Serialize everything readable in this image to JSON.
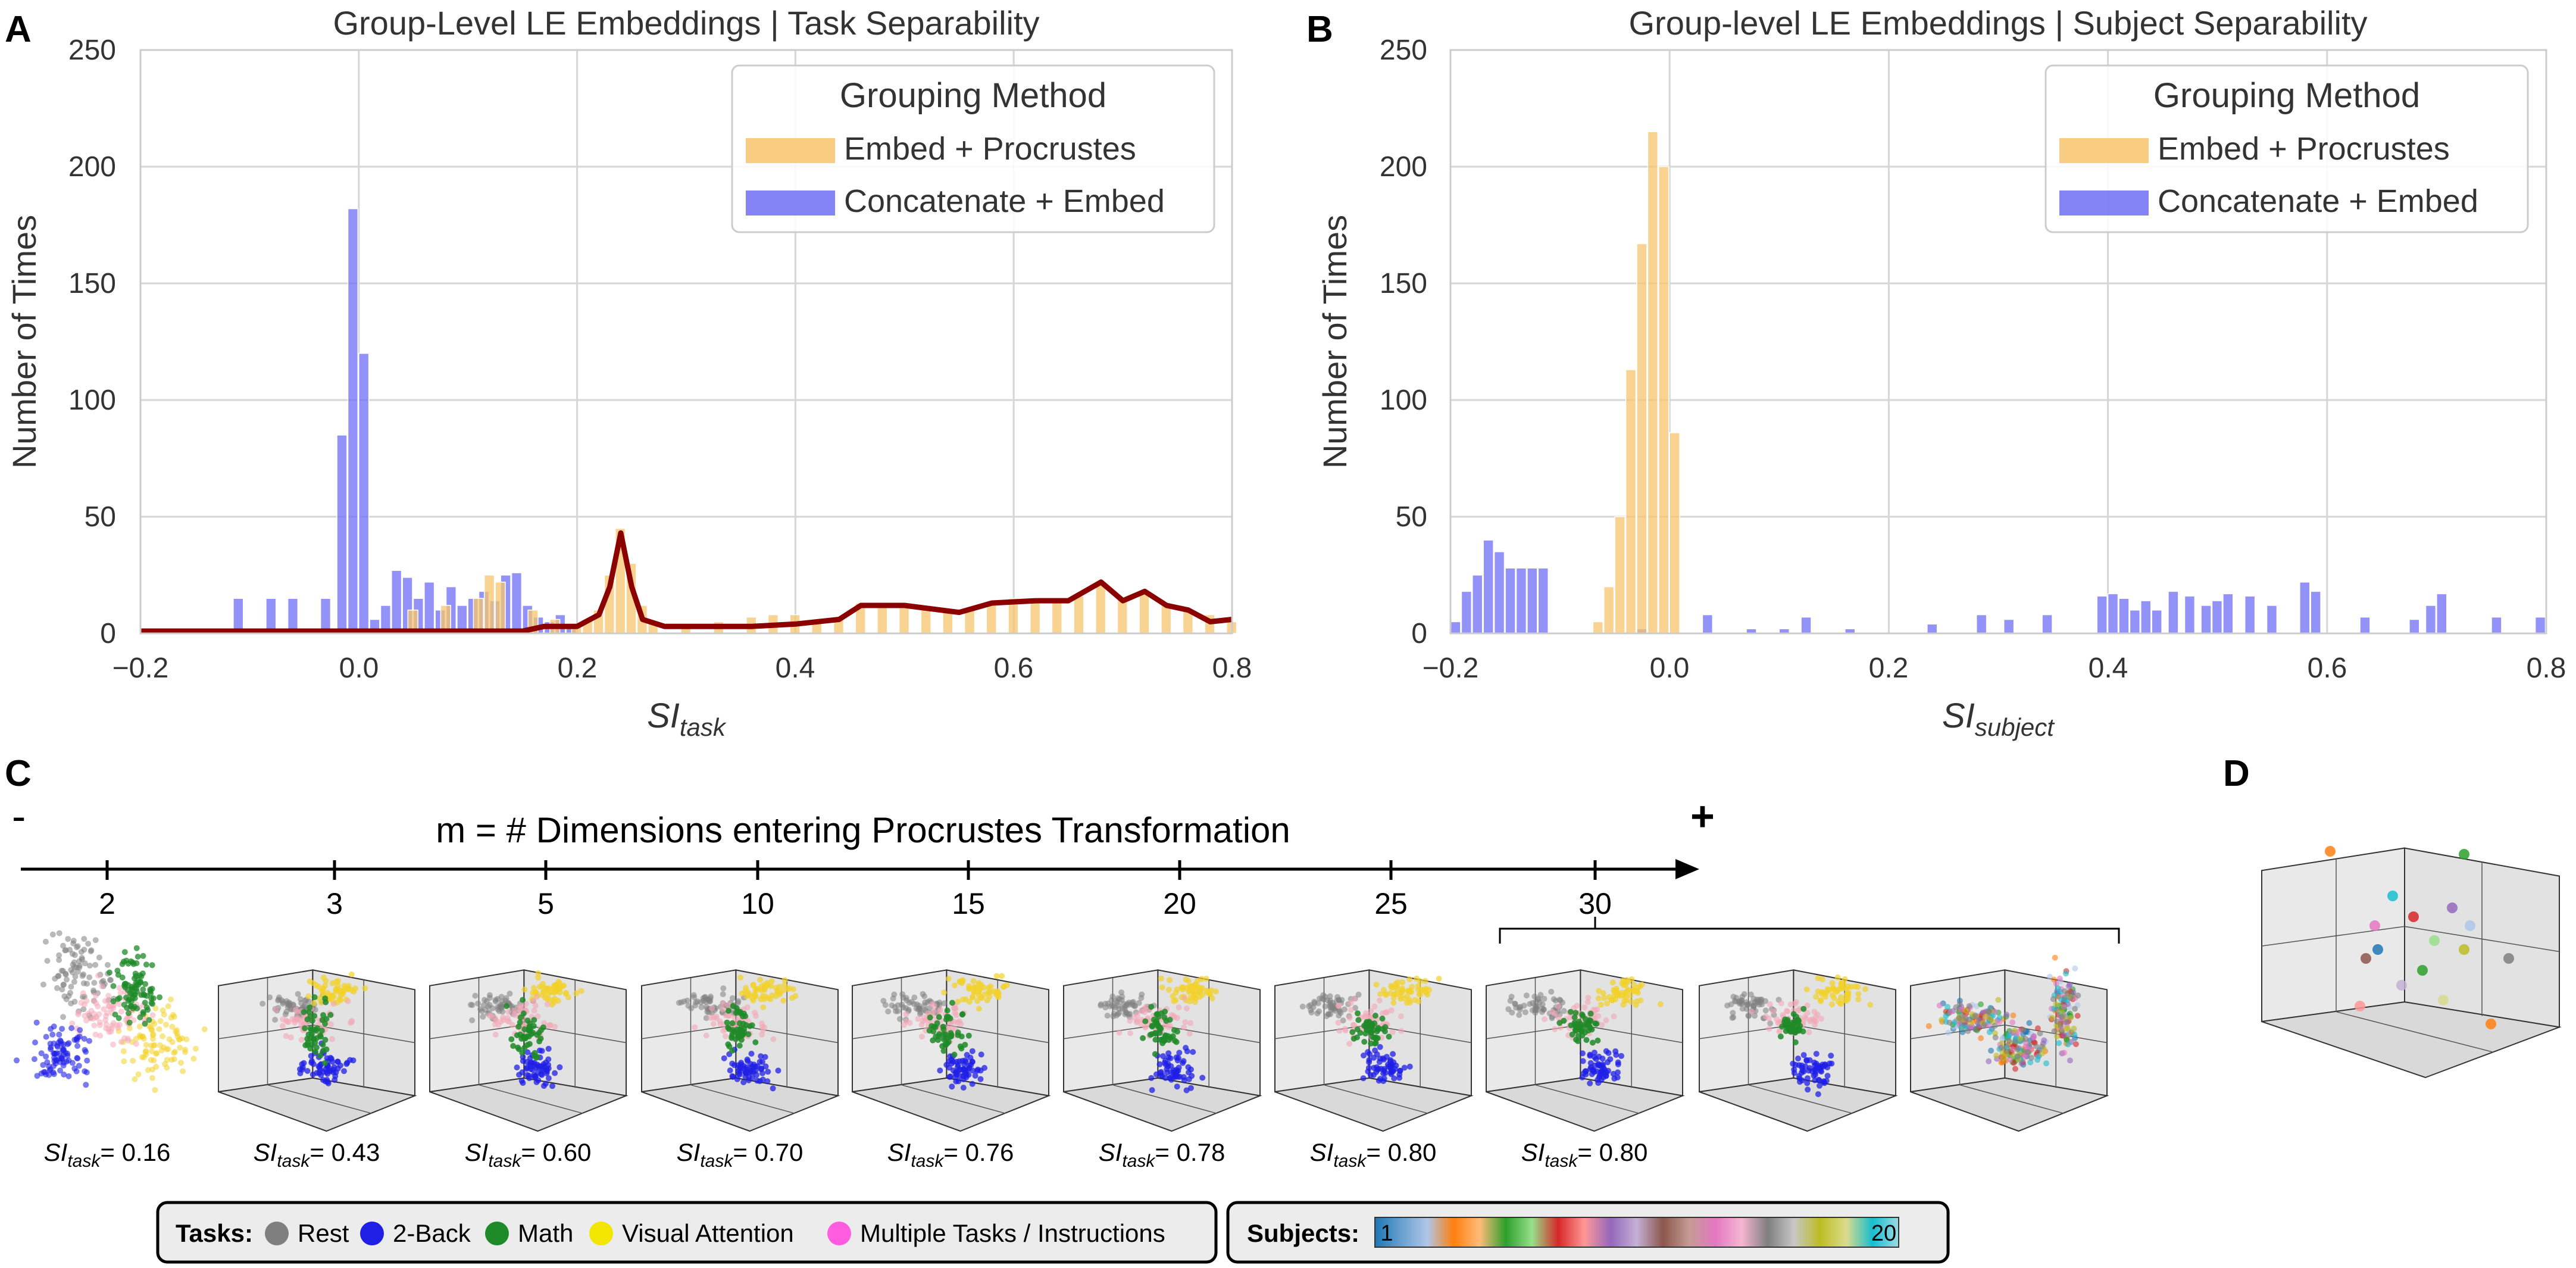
{
  "panel_letters": {
    "a": "A",
    "b": "B",
    "c": "C",
    "d": "D"
  },
  "panel_a": {
    "title": "Group-Level LE Embeddings | Task Separability",
    "ylabel": "Number of Times",
    "xlabel_main": "SI",
    "xlabel_sub": "task",
    "xticks": [
      "−0.2",
      "0.0",
      "0.2",
      "0.4",
      "0.6",
      "0.8"
    ],
    "yticks": [
      "0",
      "50",
      "100",
      "150",
      "200",
      "250"
    ],
    "legend": {
      "title": "Grouping Method",
      "items": [
        "Embed + Procrustes",
        "Concatenate + Embed"
      ]
    }
  },
  "panel_b": {
    "title": "Group-level LE Embeddings | Subject Separability",
    "ylabel": "Number of Times",
    "xlabel_main": "SI",
    "xlabel_sub": "subject",
    "xticks": [
      "−0.2",
      "0.0",
      "0.2",
      "0.4",
      "0.6",
      "0.8"
    ],
    "yticks": [
      "0",
      "50",
      "100",
      "150",
      "200",
      "250"
    ],
    "legend": {
      "title": "Grouping Method",
      "items": [
        "Embed + Procrustes",
        "Concatenate + Embed"
      ]
    }
  },
  "panel_c": {
    "axis_title": "m = # Dimensions entering Procrustes Transformation",
    "minus": "-",
    "plus": "+",
    "m_values": [
      "2",
      "3",
      "5",
      "10",
      "15",
      "20",
      "25",
      "30"
    ],
    "si_label_main": "SI",
    "si_label_sub": "task",
    "si_values": [
      "= 0.16",
      "= 0.43",
      "= 0.60",
      "= 0.70",
      "= 0.76",
      "= 0.78",
      "= 0.80",
      "= 0.80"
    ]
  },
  "legend_tasks": {
    "label": "Tasks:",
    "items": [
      "Rest",
      "2-Back",
      "Math",
      "Visual Attention",
      "Multiple Tasks / Instructions"
    ]
  },
  "legend_subjects": {
    "label": "Subjects:",
    "first": "1",
    "last": "20"
  },
  "colors": {
    "orange": "#f7c46c",
    "blue": "#6e6ef5",
    "darkred": "#8b0000",
    "grid": "#d0d0d0",
    "rest": "#7f7f7f",
    "twoback": "#1f1fe6",
    "math": "#1e8a28",
    "visual": "#f2d229",
    "multiple": "#f4a9b7"
  },
  "chart_data": [
    {
      "type": "bar",
      "id": "A",
      "title": "Group-Level LE Embeddings | Task Separability",
      "xlabel": "SI_task",
      "ylabel": "Number of Times",
      "xlim": [
        -0.2,
        0.8
      ],
      "ylim": [
        0,
        250
      ],
      "bin_width": 0.01,
      "series": [
        {
          "name": "Concatenate + Embed",
          "points": [
            [
              -0.11,
              15
            ],
            [
              -0.08,
              15
            ],
            [
              -0.06,
              15
            ],
            [
              -0.03,
              15
            ],
            [
              -0.015,
              85
            ],
            [
              -0.005,
              182
            ],
            [
              0.005,
              120
            ],
            [
              0.015,
              6
            ],
            [
              0.025,
              12
            ],
            [
              0.035,
              27
            ],
            [
              0.045,
              24
            ],
            [
              0.055,
              15
            ],
            [
              0.065,
              22
            ],
            [
              0.075,
              10
            ],
            [
              0.085,
              20
            ],
            [
              0.095,
              12
            ],
            [
              0.105,
              15
            ],
            [
              0.115,
              18
            ],
            [
              0.125,
              14
            ],
            [
              0.135,
              25
            ],
            [
              0.145,
              26
            ],
            [
              0.155,
              12
            ],
            [
              0.165,
              7
            ],
            [
              0.175,
              5
            ],
            [
              0.185,
              8
            ],
            [
              0.195,
              3
            ]
          ]
        },
        {
          "name": "Embed + Procrustes",
          "points": [
            [
              0.05,
              10
            ],
            [
              0.08,
              12
            ],
            [
              0.11,
              15
            ],
            [
              0.12,
              25
            ],
            [
              0.13,
              22
            ],
            [
              0.16,
              10
            ],
            [
              0.18,
              6
            ],
            [
              0.2,
              4
            ],
            [
              0.21,
              6
            ],
            [
              0.22,
              10
            ],
            [
              0.23,
              25
            ],
            [
              0.24,
              45
            ],
            [
              0.25,
              30
            ],
            [
              0.26,
              12
            ],
            [
              0.27,
              5
            ],
            [
              0.3,
              4
            ],
            [
              0.33,
              5
            ],
            [
              0.36,
              7
            ],
            [
              0.38,
              8
            ],
            [
              0.4,
              8
            ],
            [
              0.42,
              6
            ],
            [
              0.44,
              7
            ],
            [
              0.46,
              13
            ],
            [
              0.48,
              13
            ],
            [
              0.5,
              11
            ],
            [
              0.52,
              12
            ],
            [
              0.54,
              9
            ],
            [
              0.56,
              10
            ],
            [
              0.58,
              13
            ],
            [
              0.6,
              15
            ],
            [
              0.62,
              14
            ],
            [
              0.64,
              14
            ],
            [
              0.66,
              16
            ],
            [
              0.68,
              21
            ],
            [
              0.7,
              15
            ],
            [
              0.72,
              18
            ],
            [
              0.74,
              12
            ],
            [
              0.76,
              10
            ],
            [
              0.78,
              8
            ],
            [
              0.8,
              5
            ]
          ]
        },
        {
          "name": "KDE (Embed + Procrustes)",
          "points": [
            [
              -0.2,
              1
            ],
            [
              0.0,
              1
            ],
            [
              0.05,
              1
            ],
            [
              0.1,
              1
            ],
            [
              0.15,
              1
            ],
            [
              0.17,
              3
            ],
            [
              0.2,
              3
            ],
            [
              0.22,
              8
            ],
            [
              0.23,
              20
            ],
            [
              0.24,
              43
            ],
            [
              0.25,
              20
            ],
            [
              0.26,
              6
            ],
            [
              0.28,
              3
            ],
            [
              0.32,
              3
            ],
            [
              0.36,
              3
            ],
            [
              0.4,
              4
            ],
            [
              0.44,
              6
            ],
            [
              0.46,
              12
            ],
            [
              0.5,
              12
            ],
            [
              0.55,
              9
            ],
            [
              0.58,
              13
            ],
            [
              0.62,
              14
            ],
            [
              0.65,
              14
            ],
            [
              0.68,
              22
            ],
            [
              0.7,
              14
            ],
            [
              0.72,
              18
            ],
            [
              0.74,
              12
            ],
            [
              0.76,
              10
            ],
            [
              0.78,
              5
            ],
            [
              0.8,
              6
            ]
          ]
        }
      ]
    },
    {
      "type": "bar",
      "id": "B",
      "title": "Group-level LE Embeddings | Subject Separability",
      "xlabel": "SI_subject",
      "ylabel": "Number of Times",
      "xlim": [
        -0.2,
        0.8
      ],
      "ylim": [
        0,
        250
      ],
      "bin_width": 0.01,
      "series": [
        {
          "name": "Embed + Procrustes",
          "points": [
            [
              -0.065,
              5
            ],
            [
              -0.055,
              20
            ],
            [
              -0.045,
              50
            ],
            [
              -0.035,
              113
            ],
            [
              -0.025,
              167
            ],
            [
              -0.015,
              215
            ],
            [
              -0.005,
              200
            ],
            [
              0.005,
              86
            ]
          ]
        },
        {
          "name": "Concatenate + Embed",
          "points": [
            [
              -0.195,
              5
            ],
            [
              -0.185,
              18
            ],
            [
              -0.175,
              25
            ],
            [
              -0.165,
              40
            ],
            [
              -0.155,
              35
            ],
            [
              -0.145,
              28
            ],
            [
              -0.135,
              28
            ],
            [
              -0.125,
              28
            ],
            [
              -0.115,
              28
            ],
            [
              -0.025,
              2
            ],
            [
              0.035,
              8
            ],
            [
              0.075,
              2
            ],
            [
              0.105,
              2
            ],
            [
              0.125,
              7
            ],
            [
              0.165,
              2
            ],
            [
              0.24,
              4
            ],
            [
              0.285,
              8
            ],
            [
              0.31,
              6
            ],
            [
              0.345,
              8
            ],
            [
              0.395,
              16
            ],
            [
              0.405,
              17
            ],
            [
              0.415,
              15
            ],
            [
              0.425,
              10
            ],
            [
              0.435,
              14
            ],
            [
              0.445,
              10
            ],
            [
              0.46,
              18
            ],
            [
              0.475,
              16
            ],
            [
              0.49,
              12
            ],
            [
              0.5,
              14
            ],
            [
              0.51,
              17
            ],
            [
              0.53,
              16
            ],
            [
              0.55,
              12
            ],
            [
              0.58,
              22
            ],
            [
              0.59,
              18
            ],
            [
              0.635,
              7
            ],
            [
              0.68,
              6
            ],
            [
              0.695,
              12
            ],
            [
              0.705,
              17
            ],
            [
              0.755,
              7
            ],
            [
              0.795,
              7
            ]
          ]
        }
      ]
    }
  ]
}
